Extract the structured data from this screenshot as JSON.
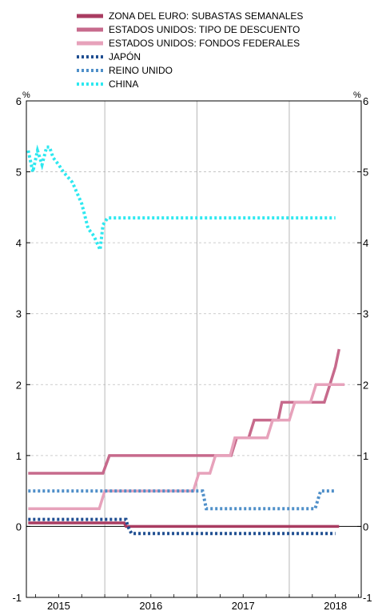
{
  "chart_data": {
    "type": "line",
    "ylabel_left": "%",
    "ylabel_right": "%",
    "ylim": [
      -1,
      6
    ],
    "yticks": [
      -1,
      0,
      1,
      2,
      3,
      4,
      5,
      6
    ],
    "xlim": [
      2014.65,
      2018.28
    ],
    "year_labels": [
      {
        "label": "2015",
        "center": 2015.0
      },
      {
        "label": "2016",
        "center": 2016.0
      },
      {
        "label": "2017",
        "center": 2017.0
      },
      {
        "label": "2018",
        "center": 2018.0
      }
    ],
    "year_dividers": [
      2015.5,
      2016.5,
      2017.5
    ],
    "grid": "dashed-horizontal",
    "legend_position": "top",
    "series": [
      {
        "name": "ZONA DEL EURO: SUBASTAS SEMANALES",
        "color": "#a93c61",
        "style": "solid",
        "x": [
          2014.67,
          2015.71,
          2015.73,
          2018.04
        ],
        "values": [
          0.05,
          0.05,
          0.0,
          0.0
        ]
      },
      {
        "name": "ESTADOS UNIDOS: TIPO DE DESCUENTO",
        "color": "#c76a8c",
        "style": "solid",
        "x": [
          2014.67,
          2015.48,
          2015.55,
          2016.87,
          2016.93,
          2017.06,
          2017.12,
          2017.38,
          2017.42,
          2017.88,
          2017.94,
          2018.0,
          2018.04
        ],
        "values": [
          0.75,
          0.75,
          1.0,
          1.0,
          1.25,
          1.25,
          1.5,
          1.5,
          1.75,
          1.75,
          2.0,
          2.25,
          2.5
        ]
      },
      {
        "name": "ESTADOS UNIDOS: FONDOS FEDERALES",
        "color": "#e7a2bb",
        "style": "solid",
        "x": [
          2014.67,
          2015.44,
          2015.5,
          2016.46,
          2016.52,
          2016.64,
          2016.7,
          2016.86,
          2016.91,
          2017.26,
          2017.32,
          2017.5,
          2017.56,
          2017.73,
          2017.79,
          2017.96,
          2018.02,
          2018.1
        ],
        "values": [
          0.25,
          0.25,
          0.5,
          0.5,
          0.75,
          0.75,
          1.0,
          1.0,
          1.25,
          1.25,
          1.5,
          1.5,
          1.75,
          1.75,
          2.0,
          2.0,
          2.0,
          2.0
        ]
      },
      {
        "name": "JAPÓN",
        "color": "#1f4e91",
        "style": "dotted",
        "x": [
          2014.67,
          2015.73,
          2015.75,
          2015.79,
          2018.0
        ],
        "values": [
          0.1,
          0.1,
          0.0,
          -0.1,
          -0.1
        ]
      },
      {
        "name": "REINO UNIDO",
        "color": "#4f8fc9",
        "style": "dotted",
        "x": [
          2014.67,
          2016.56,
          2016.6,
          2017.78,
          2017.84,
          2018.0
        ],
        "values": [
          0.5,
          0.5,
          0.25,
          0.25,
          0.5,
          0.5
        ]
      },
      {
        "name": "CHINA",
        "color": "#2ee8f0",
        "style": "dotted",
        "x": [
          2014.67,
          2014.72,
          2014.77,
          2014.82,
          2014.87,
          2014.9,
          2014.94,
          2015.0,
          2015.05,
          2015.15,
          2015.25,
          2015.32,
          2015.38,
          2015.45,
          2015.48,
          2015.53,
          2015.58,
          2015.65,
          2018.0
        ],
        "values": [
          5.3,
          5.0,
          5.3,
          5.1,
          5.35,
          5.35,
          5.2,
          5.1,
          5.0,
          4.85,
          4.55,
          4.2,
          4.1,
          3.9,
          4.25,
          4.35,
          4.35,
          4.35,
          4.35
        ]
      }
    ]
  }
}
